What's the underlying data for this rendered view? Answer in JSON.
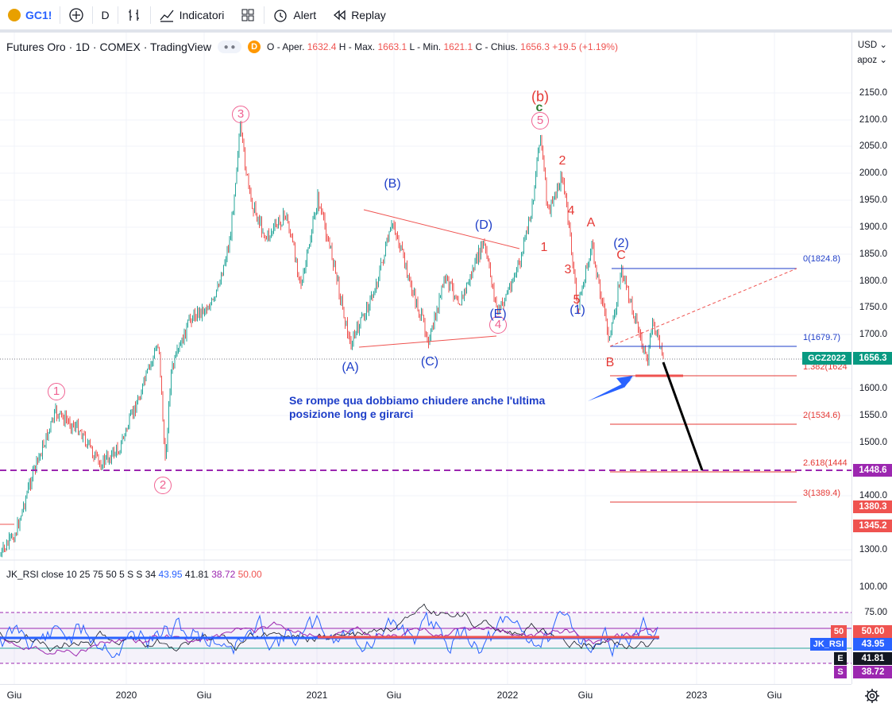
{
  "toolbar": {
    "symbol": "GC1!",
    "interval": "D",
    "indicators_label": "Indicatori",
    "alert_label": "Alert",
    "replay_label": "Replay"
  },
  "legend": {
    "title": "Futures Oro · 1D · COMEX · TradingView",
    "badge": "D",
    "open_label": "O - Aper.",
    "open": "1632.4",
    "high_label": "H - Max.",
    "high": "1663.1",
    "low_label": "L - Min.",
    "low": "1621.1",
    "close_label": "C - Chius.",
    "close": "1656.3",
    "change": "+19.5 (+1.19%)"
  },
  "price_scale": {
    "currency": "USD",
    "mode": "apoz",
    "labels": [
      "2150.0",
      "2100.0",
      "2050.0",
      "2000.0",
      "1950.0",
      "1900.0",
      "1850.0",
      "1800.0",
      "1750.0",
      "1700.0",
      "1600.0",
      "1550.0",
      "1500.0",
      "1400.0",
      "1300.0"
    ],
    "tags": {
      "gc_name": "GCZ2022",
      "gc_value": "1656.3",
      "level1": "1448.6",
      "level2": "1380.3",
      "level3": "1345.2"
    }
  },
  "rsi_scale": {
    "labels": [
      "100.00",
      "75.00"
    ],
    "tags": {
      "mid": "50",
      "mid_value": "50.00",
      "name": "JK_RSI",
      "rsi": "43.95",
      "e_label": "E",
      "e": "41.81",
      "s_label": "S",
      "s": "38.72"
    }
  },
  "time_scale": [
    "Giu",
    "2020",
    "Giu",
    "2021",
    "Giu",
    "2022",
    "Giu",
    "2023",
    "Giu"
  ],
  "rsi_legend": {
    "text": "JK_RSI close 10 25 75 50 5 S S 34",
    "v1": "43.95",
    "v2": "41.81",
    "v3": "38.72",
    "v4": "50.00"
  },
  "fib_levels": [
    "0(1824.8)",
    "1(1679.7)",
    "1.382(1624",
    "2(1534.6)",
    "2.618(1444",
    "3(1389.4)"
  ],
  "wave_labels": {
    "circle": [
      "1",
      "2",
      "3",
      "4",
      "5"
    ],
    "corrective": [
      "(A)",
      "(B)",
      "(C)",
      "(D)",
      "(E)"
    ],
    "b_paren": "(b)",
    "c_green": "c",
    "impulse": [
      "1",
      "2",
      "3",
      "4",
      "5"
    ],
    "abc": [
      "A",
      "B",
      "C"
    ],
    "deg": [
      "(1)",
      "(2)"
    ]
  },
  "annotation": [
    "Se rompe qua dobbiamo chiudere anche l'ultima",
    "posizione long e girarci"
  ],
  "colors": {
    "up": "#26a69a",
    "down": "#ef5350",
    "accent": "#2962ff",
    "wave_blue": "#1e3ec8",
    "wave_red": "#e53935",
    "wave_pink": "#f06292",
    "purple": "#9c27b0"
  }
}
